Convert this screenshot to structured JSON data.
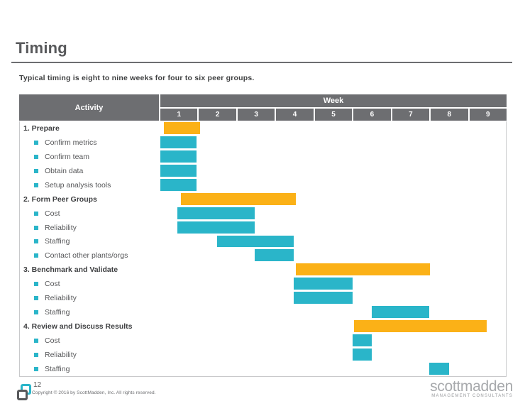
{
  "slide": {
    "title": "Timing",
    "subtitle": "Typical timing is eight to nine weeks for four to six peer groups."
  },
  "table": {
    "activity_header": "Activity",
    "week_header": "Week",
    "week_numbers": [
      "1",
      "2",
      "3",
      "4",
      "5",
      "6",
      "7",
      "8",
      "9"
    ]
  },
  "chart_data": {
    "type": "gantt",
    "title": "Timing",
    "xlabel": "Week",
    "axis_ticks": [
      "1",
      "2",
      "3",
      "4",
      "5",
      "6",
      "7",
      "8",
      "9"
    ],
    "week_min": 0,
    "week_max": 9,
    "rows": [
      {
        "label": "1. Prepare",
        "level": "section",
        "start": 0,
        "end": 0.95,
        "color": "orange"
      },
      {
        "label": "Confirm metrics",
        "level": "item",
        "start": 0,
        "end": 0.95,
        "color": "teal"
      },
      {
        "label": "Confirm team",
        "level": "item",
        "start": 0,
        "end": 0.95,
        "color": "teal"
      },
      {
        "label": "Obtain data",
        "level": "item",
        "start": 0,
        "end": 0.95,
        "color": "teal"
      },
      {
        "label": "Setup analysis tools",
        "level": "item",
        "start": 0,
        "end": 0.95,
        "color": "teal"
      },
      {
        "label": "2. Form Peer Groups",
        "level": "section",
        "start": 0.45,
        "end": 3.48,
        "color": "orange"
      },
      {
        "label": "Cost",
        "level": "item",
        "start": 0.45,
        "end": 2.46,
        "color": "teal"
      },
      {
        "label": "Reliability",
        "level": "item",
        "start": 0.45,
        "end": 2.46,
        "color": "teal"
      },
      {
        "label": "Staffing",
        "level": "item",
        "start": 1.47,
        "end": 3.48,
        "color": "teal"
      },
      {
        "label": "Contact other plants/orgs",
        "level": "item",
        "start": 2.46,
        "end": 3.48,
        "color": "teal"
      },
      {
        "label": "3. Benchmark and Validate",
        "level": "section",
        "start": 3.48,
        "end": 7.0,
        "color": "orange"
      },
      {
        "label": "Cost",
        "level": "item",
        "start": 3.48,
        "end": 5.0,
        "color": "teal"
      },
      {
        "label": "Reliability",
        "level": "item",
        "start": 3.48,
        "end": 5.0,
        "color": "teal"
      },
      {
        "label": "Staffing",
        "level": "item",
        "start": 5.5,
        "end": 7.0,
        "color": "teal"
      },
      {
        "label": "4. Review and Discuss Results",
        "level": "section",
        "start": 5.0,
        "end": 8.5,
        "color": "orange"
      },
      {
        "label": "Cost",
        "level": "item",
        "start": 5.0,
        "end": 5.51,
        "color": "teal"
      },
      {
        "label": "Reliability",
        "level": "item",
        "start": 5.0,
        "end": 5.51,
        "color": "teal"
      },
      {
        "label": "Staffing",
        "level": "item",
        "start": 7.0,
        "end": 7.52,
        "color": "teal"
      }
    ]
  },
  "colors": {
    "orange": "#FBB117",
    "teal": "#2AB5C9",
    "header_gray": "#6D6E71"
  },
  "footer": {
    "page_number": "12",
    "copyright": "Copyright © 2016 by ScottMadden, Inc. All rights reserved.",
    "brand_name": "scottmadden",
    "brand_subtext": "MANAGEMENT CONSULTANTS"
  }
}
